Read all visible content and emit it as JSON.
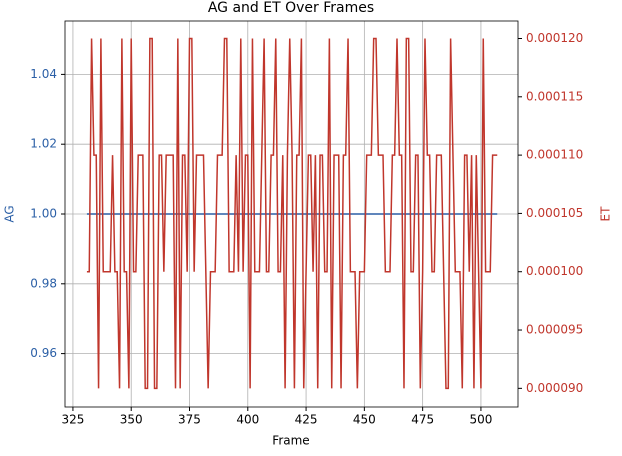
{
  "chart_data": {
    "type": "line",
    "title": "AG and ET Over Frames",
    "xlabel": "Frame",
    "ylabel": "AG",
    "y2label": "ET",
    "x": [
      331,
      332,
      333,
      334,
      335,
      336,
      337,
      338,
      339,
      340,
      341,
      342,
      343,
      344,
      345,
      346,
      347,
      348,
      349,
      350,
      351,
      352,
      353,
      354,
      355,
      356,
      357,
      358,
      359,
      360,
      361,
      362,
      363,
      364,
      365,
      366,
      367,
      368,
      369,
      370,
      371,
      372,
      373,
      374,
      375,
      376,
      377,
      378,
      379,
      380,
      381,
      382,
      383,
      384,
      385,
      386,
      387,
      388,
      389,
      390,
      391,
      392,
      393,
      394,
      395,
      396,
      397,
      398,
      399,
      400,
      401,
      402,
      403,
      404,
      405,
      406,
      407,
      408,
      409,
      410,
      411,
      412,
      413,
      414,
      415,
      416,
      417,
      418,
      419,
      420,
      421,
      422,
      423,
      424,
      425,
      426,
      427,
      428,
      429,
      430,
      431,
      432,
      433,
      434,
      435,
      436,
      437,
      438,
      439,
      440,
      441,
      442,
      443,
      444,
      445,
      446,
      447,
      448,
      449,
      450,
      451,
      452,
      453,
      454,
      455,
      456,
      457,
      458,
      459,
      460,
      461,
      462,
      463,
      464,
      465,
      466,
      467,
      468,
      469,
      470,
      471,
      472,
      473,
      474,
      475,
      476,
      477,
      478,
      479,
      480,
      481,
      482,
      483,
      484,
      485,
      486,
      487,
      488,
      489,
      490,
      491,
      492,
      493,
      494,
      495,
      496,
      497,
      498,
      499,
      500,
      501,
      502,
      503,
      504,
      505,
      506,
      507
    ],
    "series": [
      {
        "color": "#2b5fa6",
        "axis": "y",
        "values": [
          1,
          1,
          1,
          1,
          1,
          1,
          1,
          1,
          1,
          1,
          1,
          1,
          1,
          1,
          1,
          1,
          1,
          1,
          1,
          1,
          1,
          1,
          1,
          1,
          1,
          1,
          1,
          1,
          1,
          1,
          1,
          1,
          1,
          1,
          1,
          1,
          1,
          1,
          1,
          1,
          1,
          1,
          1,
          1,
          1,
          1,
          1,
          1,
          1,
          1,
          1,
          1,
          1,
          1,
          1,
          1,
          1,
          1,
          1,
          1,
          1,
          1,
          1,
          1,
          1,
          1,
          1,
          1,
          1,
          1,
          1,
          1,
          1,
          1,
          1,
          1,
          1,
          1,
          1,
          1,
          1,
          1,
          1,
          1,
          1,
          1,
          1,
          1,
          1,
          1,
          1,
          1,
          1,
          1,
          1,
          1,
          1,
          1,
          1,
          1,
          1,
          1,
          1,
          1,
          1,
          1,
          1,
          1,
          1,
          1,
          1,
          1,
          1,
          1,
          1,
          1,
          1,
          1,
          1,
          1,
          1,
          1,
          1,
          1,
          1,
          1,
          1,
          1,
          1,
          1,
          1,
          1,
          1,
          1,
          1,
          1,
          1,
          1,
          1,
          1,
          1,
          1,
          1,
          1,
          1,
          1,
          1,
          1,
          1,
          1,
          1,
          1,
          1,
          1,
          1,
          1,
          1,
          1,
          1,
          1,
          1,
          1,
          1,
          1,
          1,
          1,
          1,
          1,
          1,
          1,
          1,
          1,
          1,
          1,
          1,
          1,
          1
        ]
      },
      {
        "color": "#c0362c",
        "axis": "y2",
        "values": [
          0.0001,
          0.0001,
          0.00012,
          0.00011,
          0.00011,
          9e-05,
          0.00012,
          0.0001,
          0.0001,
          0.0001,
          0.0001,
          0.00011,
          0.0001,
          0.0001,
          9e-05,
          0.00012,
          0.0001,
          0.0001,
          9e-05,
          0.00012,
          0.0001,
          0.0001,
          0.00011,
          0.00011,
          0.00011,
          9e-05,
          9e-05,
          0.00012,
          0.00012,
          9e-05,
          9e-05,
          0.00011,
          0.00011,
          0.0001,
          0.00011,
          0.00011,
          0.00011,
          0.00011,
          9e-05,
          0.00012,
          9e-05,
          0.00011,
          0.00011,
          0.0001,
          0.00012,
          0.00012,
          0.0001,
          0.00011,
          0.00011,
          0.00011,
          0.00011,
          0.0001,
          9e-05,
          0.0001,
          0.0001,
          0.0001,
          0.00011,
          0.00011,
          0.00011,
          0.00012,
          0.00012,
          0.0001,
          0.0001,
          0.0001,
          0.00011,
          0.0001,
          0.00012,
          0.0001,
          0.00011,
          0.00011,
          9e-05,
          0.00012,
          0.0001,
          0.0001,
          0.0001,
          0.00011,
          0.00012,
          0.0001,
          0.0001,
          0.00011,
          0.00011,
          0.00012,
          0.0001,
          0.0001,
          0.00011,
          9e-05,
          0.00011,
          0.00012,
          0.00011,
          9e-05,
          0.00011,
          0.00011,
          0.00012,
          9e-05,
          0.0001,
          0.00011,
          0.00011,
          0.0001,
          0.00011,
          9e-05,
          0.00011,
          0.00011,
          0.0001,
          0.0001,
          0.00012,
          9e-05,
          0.00011,
          0.00011,
          0.00011,
          9e-05,
          0.00011,
          0.00011,
          0.00012,
          0.0001,
          0.0001,
          0.0001,
          9e-05,
          0.0001,
          0.0001,
          0.0001,
          0.00011,
          0.00011,
          0.00011,
          0.00012,
          0.00012,
          0.00011,
          0.00011,
          0.00011,
          0.0001,
          0.0001,
          0.0001,
          0.00011,
          0.00011,
          0.00012,
          0.00011,
          0.00011,
          9e-05,
          0.00012,
          0.00012,
          0.0001,
          0.0001,
          0.00011,
          0.00011,
          9e-05,
          0.0001,
          0.00012,
          0.00011,
          0.00011,
          0.0001,
          0.0001,
          0.00011,
          0.00011,
          0.00011,
          0.0001,
          9e-05,
          9e-05,
          0.00012,
          0.00011,
          0.0001,
          0.0001,
          0.0001,
          9e-05,
          0.00011,
          0.00011,
          0.0001,
          0.00011,
          9e-05,
          0.00011,
          0.0001,
          9e-05,
          0.00012,
          0.0001,
          0.0001,
          0.0001,
          0.00011,
          0.00011,
          0.00011
        ]
      }
    ],
    "xlim": [
      321.6,
      515.9
    ],
    "xticks": [
      325,
      350,
      375,
      400,
      425,
      450,
      475,
      500
    ],
    "ylim": [
      0.9447,
      1.0553
    ],
    "yticks": [
      0.96,
      0.98,
      {
        "value": 1,
        "label": "1.00"
      },
      1.02,
      1.04
    ],
    "y2lim": [
      8.84e-05,
      0.0001215
    ],
    "y2ticks": [
      {
        "value": 9e-05,
        "label": "0.000090"
      },
      {
        "value": 9.5e-05,
        "label": "0.000095"
      },
      {
        "value": 0.0001,
        "label": "0.000100"
      },
      {
        "value": 0.000105,
        "label": "0.000105"
      },
      {
        "value": 0.00011,
        "label": "0.000110"
      },
      {
        "value": 0.000115,
        "label": "0.000115"
      },
      {
        "value": 0.00012,
        "label": "0.000120"
      }
    ],
    "grid": true
  }
}
